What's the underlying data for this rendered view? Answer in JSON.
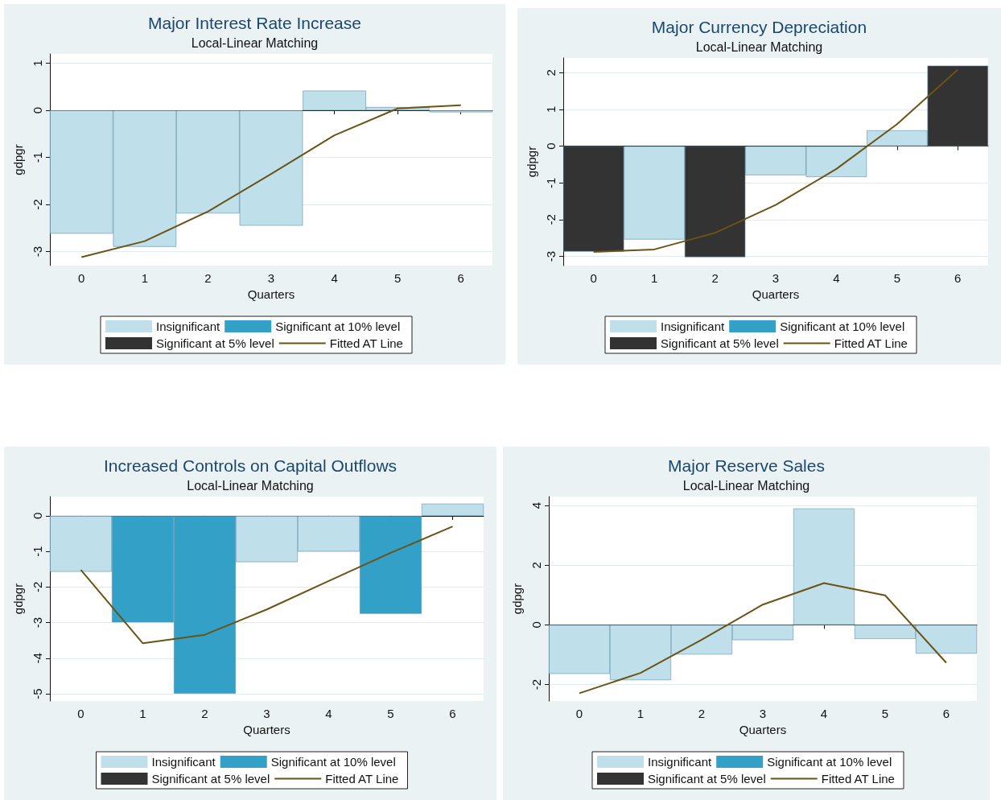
{
  "chart_data": [
    {
      "type": "bar",
      "title": "Major Interest Rate Increase",
      "subtitle": "Local-Linear Matching",
      "xlabel": "Quarters",
      "ylabel": "gdpgr",
      "categories": [
        "0",
        "1",
        "2",
        "3",
        "4",
        "5",
        "6"
      ],
      "grid": "y",
      "legend": "bottom",
      "marker": "none",
      "ylim": [
        -3.3,
        1.2
      ],
      "yticks": [
        -3,
        -2,
        -1,
        0,
        1
      ],
      "series": [
        {
          "name": "Insignificant",
          "color": "#bfe0ea",
          "values": [
            -2.62,
            -2.9,
            -2.19,
            -2.45,
            0.42,
            0.07,
            -0.04
          ]
        },
        {
          "name": "Significant at 10% level",
          "color": "#33a0c8",
          "values": [
            null,
            null,
            null,
            null,
            null,
            null,
            null
          ]
        },
        {
          "name": "Significant at 5% level",
          "color": "#333333",
          "values": [
            null,
            null,
            null,
            null,
            null,
            null,
            null
          ]
        },
        {
          "name": "Fitted AT Line",
          "type": "line",
          "color": "#6b5316",
          "values": [
            -3.12,
            -2.78,
            -2.15,
            -1.35,
            -0.53,
            0.04,
            0.11
          ]
        }
      ]
    },
    {
      "type": "bar",
      "title": "Major Currency Depreciation",
      "subtitle": "Local-Linear Matching",
      "xlabel": "Quarters",
      "ylabel": "gdpgr",
      "categories": [
        "0",
        "1",
        "2",
        "3",
        "4",
        "5",
        "6"
      ],
      "grid": "y",
      "legend": "bottom",
      "marker": "none",
      "ylim": [
        -3.25,
        2.4
      ],
      "yticks": [
        -3,
        -2,
        -1,
        0,
        1,
        2
      ],
      "series": [
        {
          "name": "Insignificant",
          "color": "#bfe0ea",
          "values": [
            null,
            -2.54,
            null,
            -0.79,
            -0.84,
            0.43,
            null
          ]
        },
        {
          "name": "Significant at 10% level",
          "color": "#33a0c8",
          "values": [
            null,
            null,
            null,
            null,
            null,
            null,
            null
          ]
        },
        {
          "name": "Significant at 5% level",
          "color": "#333333",
          "values": [
            -2.87,
            null,
            -3.02,
            null,
            null,
            null,
            2.19
          ]
        },
        {
          "name": "Fitted AT Line",
          "type": "line",
          "color": "#6b5316",
          "values": [
            -2.88,
            -2.81,
            -2.36,
            -1.6,
            -0.62,
            0.6,
            2.08
          ]
        }
      ]
    },
    {
      "type": "bar",
      "title": "Increased Controls on Capital Outflows",
      "subtitle": "Local-Linear Matching",
      "xlabel": "Quarters",
      "ylabel": "gdpgr",
      "categories": [
        "0",
        "1",
        "2",
        "3",
        "4",
        "5",
        "6"
      ],
      "grid": "y",
      "legend": "bottom",
      "marker": "none",
      "ylim": [
        -5.2,
        0.54
      ],
      "yticks": [
        -5,
        -4,
        -3,
        -2,
        -1,
        0
      ],
      "series": [
        {
          "name": "Insignificant",
          "color": "#bfe0ea",
          "values": [
            -1.57,
            null,
            null,
            -1.3,
            -1.0,
            null,
            0.34
          ]
        },
        {
          "name": "Significant at 10% level",
          "color": "#33a0c8",
          "values": [
            null,
            -2.99,
            -4.99,
            null,
            null,
            -2.75,
            null
          ]
        },
        {
          "name": "Significant at 5% level",
          "color": "#333333",
          "values": [
            null,
            null,
            null,
            null,
            null,
            null,
            null
          ]
        },
        {
          "name": "Fitted AT Line",
          "type": "line",
          "color": "#6b5316",
          "values": [
            -1.52,
            -3.58,
            -3.34,
            -2.63,
            -1.83,
            -1.04,
            -0.3
          ]
        }
      ]
    },
    {
      "type": "bar",
      "title": "Major Reserve Sales",
      "subtitle": "Local-Linear Matching",
      "xlabel": "Quarters",
      "ylabel": "gdpgr",
      "categories": [
        "0",
        "1",
        "2",
        "3",
        "4",
        "5",
        "6"
      ],
      "grid": "y",
      "legend": "bottom",
      "marker": "none",
      "ylim": [
        -2.55,
        4.3
      ],
      "yticks": [
        -2,
        0,
        2,
        4
      ],
      "series": [
        {
          "name": "Insignificant",
          "color": "#bfe0ea",
          "values": [
            -1.64,
            -1.85,
            -0.99,
            -0.51,
            3.9,
            -0.47,
            -0.96
          ]
        },
        {
          "name": "Significant at 10% level",
          "color": "#33a0c8",
          "values": [
            null,
            null,
            null,
            null,
            null,
            null,
            null
          ]
        },
        {
          "name": "Significant at 5% level",
          "color": "#333333",
          "values": [
            null,
            null,
            null,
            null,
            null,
            null,
            null
          ]
        },
        {
          "name": "Fitted AT Line",
          "type": "line",
          "color": "#6b5316",
          "values": [
            -2.29,
            -1.61,
            -0.5,
            0.68,
            1.4,
            0.99,
            -1.27
          ]
        }
      ]
    }
  ]
}
